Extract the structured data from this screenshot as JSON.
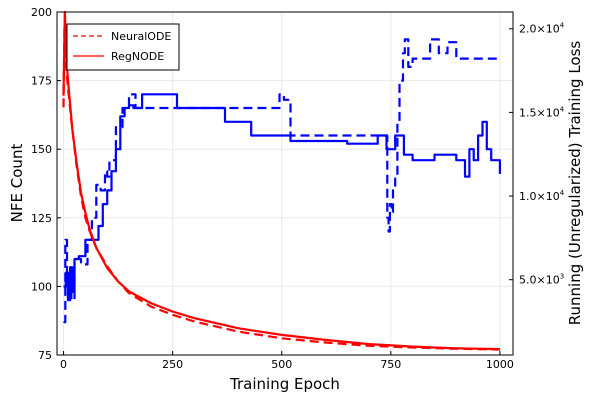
{
  "chart_data": {
    "type": "line",
    "xlabel": "Training Epoch",
    "ylabel_left": "NFE Count",
    "ylabel_right": "Running (Unregularized) Training Loss",
    "x_range": [
      0,
      1000
    ],
    "xticks": [
      0,
      250,
      500,
      750,
      1000
    ],
    "xtick_labels": [
      "0",
      "250",
      "500",
      "750",
      "1000"
    ],
    "ylim_left": [
      75,
      200
    ],
    "yticks_left": [
      75,
      100,
      125,
      150,
      175,
      200
    ],
    "ytick_labels_left": [
      "75",
      "100",
      "125",
      "150",
      "175",
      "200"
    ],
    "ylim_right": [
      500,
      21000
    ],
    "yticks_right": [
      5000,
      10000,
      15000,
      20000
    ],
    "ytick_labels_right": [
      {
        "mant": "5.0×10",
        "exp": "3"
      },
      {
        "mant": "1.0×10",
        "exp": "4"
      },
      {
        "mant": "1.5×10",
        "exp": "4"
      },
      {
        "mant": "2.0×10",
        "exp": "4"
      }
    ],
    "grid": true,
    "legend_position": "top-left",
    "legend": [
      {
        "label": "NeuralODE",
        "style": "dashed",
        "color": "#ff0000"
      },
      {
        "label": "RegNODE",
        "style": "solid",
        "color": "#ff0000"
      }
    ],
    "colors": {
      "nfe": "#0000ff",
      "loss": "#ff0000",
      "grid": "#e8e8e8"
    },
    "series": [
      {
        "axis": "left",
        "quantity": "NFE",
        "model": "NeuralODE",
        "style": "dashed",
        "color": "#0000ff",
        "points": [
          [
            0,
            87
          ],
          [
            4,
            117
          ],
          [
            8,
            100
          ],
          [
            12,
            105
          ],
          [
            18,
            95
          ],
          [
            25,
            110
          ],
          [
            40,
            108
          ],
          [
            55,
            117
          ],
          [
            65,
            125
          ],
          [
            75,
            137
          ],
          [
            85,
            135
          ],
          [
            95,
            142
          ],
          [
            100,
            140
          ],
          [
            105,
            146
          ],
          [
            120,
            158
          ],
          [
            135,
            165
          ],
          [
            150,
            170
          ],
          [
            165,
            165
          ],
          [
            180,
            165
          ],
          [
            220,
            165
          ],
          [
            300,
            165
          ],
          [
            400,
            165
          ],
          [
            480,
            165
          ],
          [
            495,
            170
          ],
          [
            505,
            168
          ],
          [
            520,
            155
          ],
          [
            600,
            155
          ],
          [
            700,
            155
          ],
          [
            740,
            155
          ],
          [
            742,
            125
          ],
          [
            745,
            120
          ],
          [
            748,
            130
          ],
          [
            752,
            127
          ],
          [
            755,
            135
          ],
          [
            760,
            140
          ],
          [
            765,
            160
          ],
          [
            770,
            175
          ],
          [
            778,
            185
          ],
          [
            782,
            190
          ],
          [
            790,
            180
          ],
          [
            800,
            183
          ],
          [
            820,
            183
          ],
          [
            840,
            190
          ],
          [
            860,
            185
          ],
          [
            880,
            189
          ],
          [
            900,
            183
          ],
          [
            1000,
            183
          ]
        ]
      },
      {
        "axis": "left",
        "quantity": "NFE",
        "model": "RegNODE",
        "style": "solid",
        "color": "#0000ff",
        "points": [
          [
            0,
            100
          ],
          [
            5,
            105
          ],
          [
            10,
            95
          ],
          [
            15,
            107
          ],
          [
            20,
            98
          ],
          [
            25,
            110
          ],
          [
            35,
            111
          ],
          [
            45,
            111
          ],
          [
            50,
            117
          ],
          [
            70,
            117
          ],
          [
            80,
            122
          ],
          [
            90,
            130
          ],
          [
            100,
            135
          ],
          [
            110,
            142
          ],
          [
            120,
            150
          ],
          [
            130,
            162
          ],
          [
            140,
            165
          ],
          [
            150,
            166
          ],
          [
            160,
            165
          ],
          [
            180,
            170
          ],
          [
            220,
            170
          ],
          [
            260,
            165
          ],
          [
            350,
            165
          ],
          [
            370,
            160
          ],
          [
            420,
            160
          ],
          [
            430,
            155
          ],
          [
            500,
            155
          ],
          [
            520,
            153
          ],
          [
            600,
            153
          ],
          [
            650,
            152
          ],
          [
            700,
            152
          ],
          [
            720,
            155
          ],
          [
            740,
            150
          ],
          [
            760,
            155
          ],
          [
            780,
            148
          ],
          [
            800,
            146
          ],
          [
            850,
            148
          ],
          [
            900,
            146
          ],
          [
            920,
            140
          ],
          [
            930,
            150
          ],
          [
            940,
            146
          ],
          [
            950,
            155
          ],
          [
            960,
            160
          ],
          [
            970,
            150
          ],
          [
            980,
            146
          ],
          [
            990,
            146
          ],
          [
            1000,
            141
          ]
        ]
      },
      {
        "axis": "right",
        "quantity": "loss",
        "model": "NeuralODE",
        "style": "dashed",
        "color": "#ff0000",
        "points": [
          [
            0,
            15300
          ],
          [
            2,
            20000
          ],
          [
            5,
            18000
          ],
          [
            10,
            16500
          ],
          [
            20,
            14000
          ],
          [
            30,
            11800
          ],
          [
            40,
            10000
          ],
          [
            50,
            8700
          ],
          [
            60,
            7900
          ],
          [
            75,
            6900
          ],
          [
            100,
            5800
          ],
          [
            125,
            4900
          ],
          [
            150,
            4200
          ],
          [
            200,
            3400
          ],
          [
            250,
            2900
          ],
          [
            300,
            2500
          ],
          [
            350,
            2200
          ],
          [
            400,
            1900
          ],
          [
            450,
            1700
          ],
          [
            500,
            1500
          ],
          [
            600,
            1250
          ],
          [
            700,
            1050
          ],
          [
            800,
            950
          ],
          [
            900,
            870
          ],
          [
            1000,
            830
          ]
        ]
      },
      {
        "axis": "right",
        "quantity": "loss",
        "model": "RegNODE",
        "style": "solid",
        "color": "#ff0000",
        "points": [
          [
            0,
            16000
          ],
          [
            3,
            21000
          ],
          [
            6,
            18500
          ],
          [
            10,
            17000
          ],
          [
            20,
            14000
          ],
          [
            30,
            12000
          ],
          [
            40,
            10200
          ],
          [
            50,
            9000
          ],
          [
            60,
            8000
          ],
          [
            75,
            6900
          ],
          [
            100,
            5700
          ],
          [
            125,
            4900
          ],
          [
            150,
            4300
          ],
          [
            200,
            3600
          ],
          [
            250,
            3100
          ],
          [
            300,
            2700
          ],
          [
            350,
            2400
          ],
          [
            400,
            2100
          ],
          [
            450,
            1900
          ],
          [
            500,
            1700
          ],
          [
            600,
            1400
          ],
          [
            700,
            1150
          ],
          [
            800,
            1000
          ],
          [
            900,
            900
          ],
          [
            1000,
            850
          ]
        ]
      }
    ]
  }
}
